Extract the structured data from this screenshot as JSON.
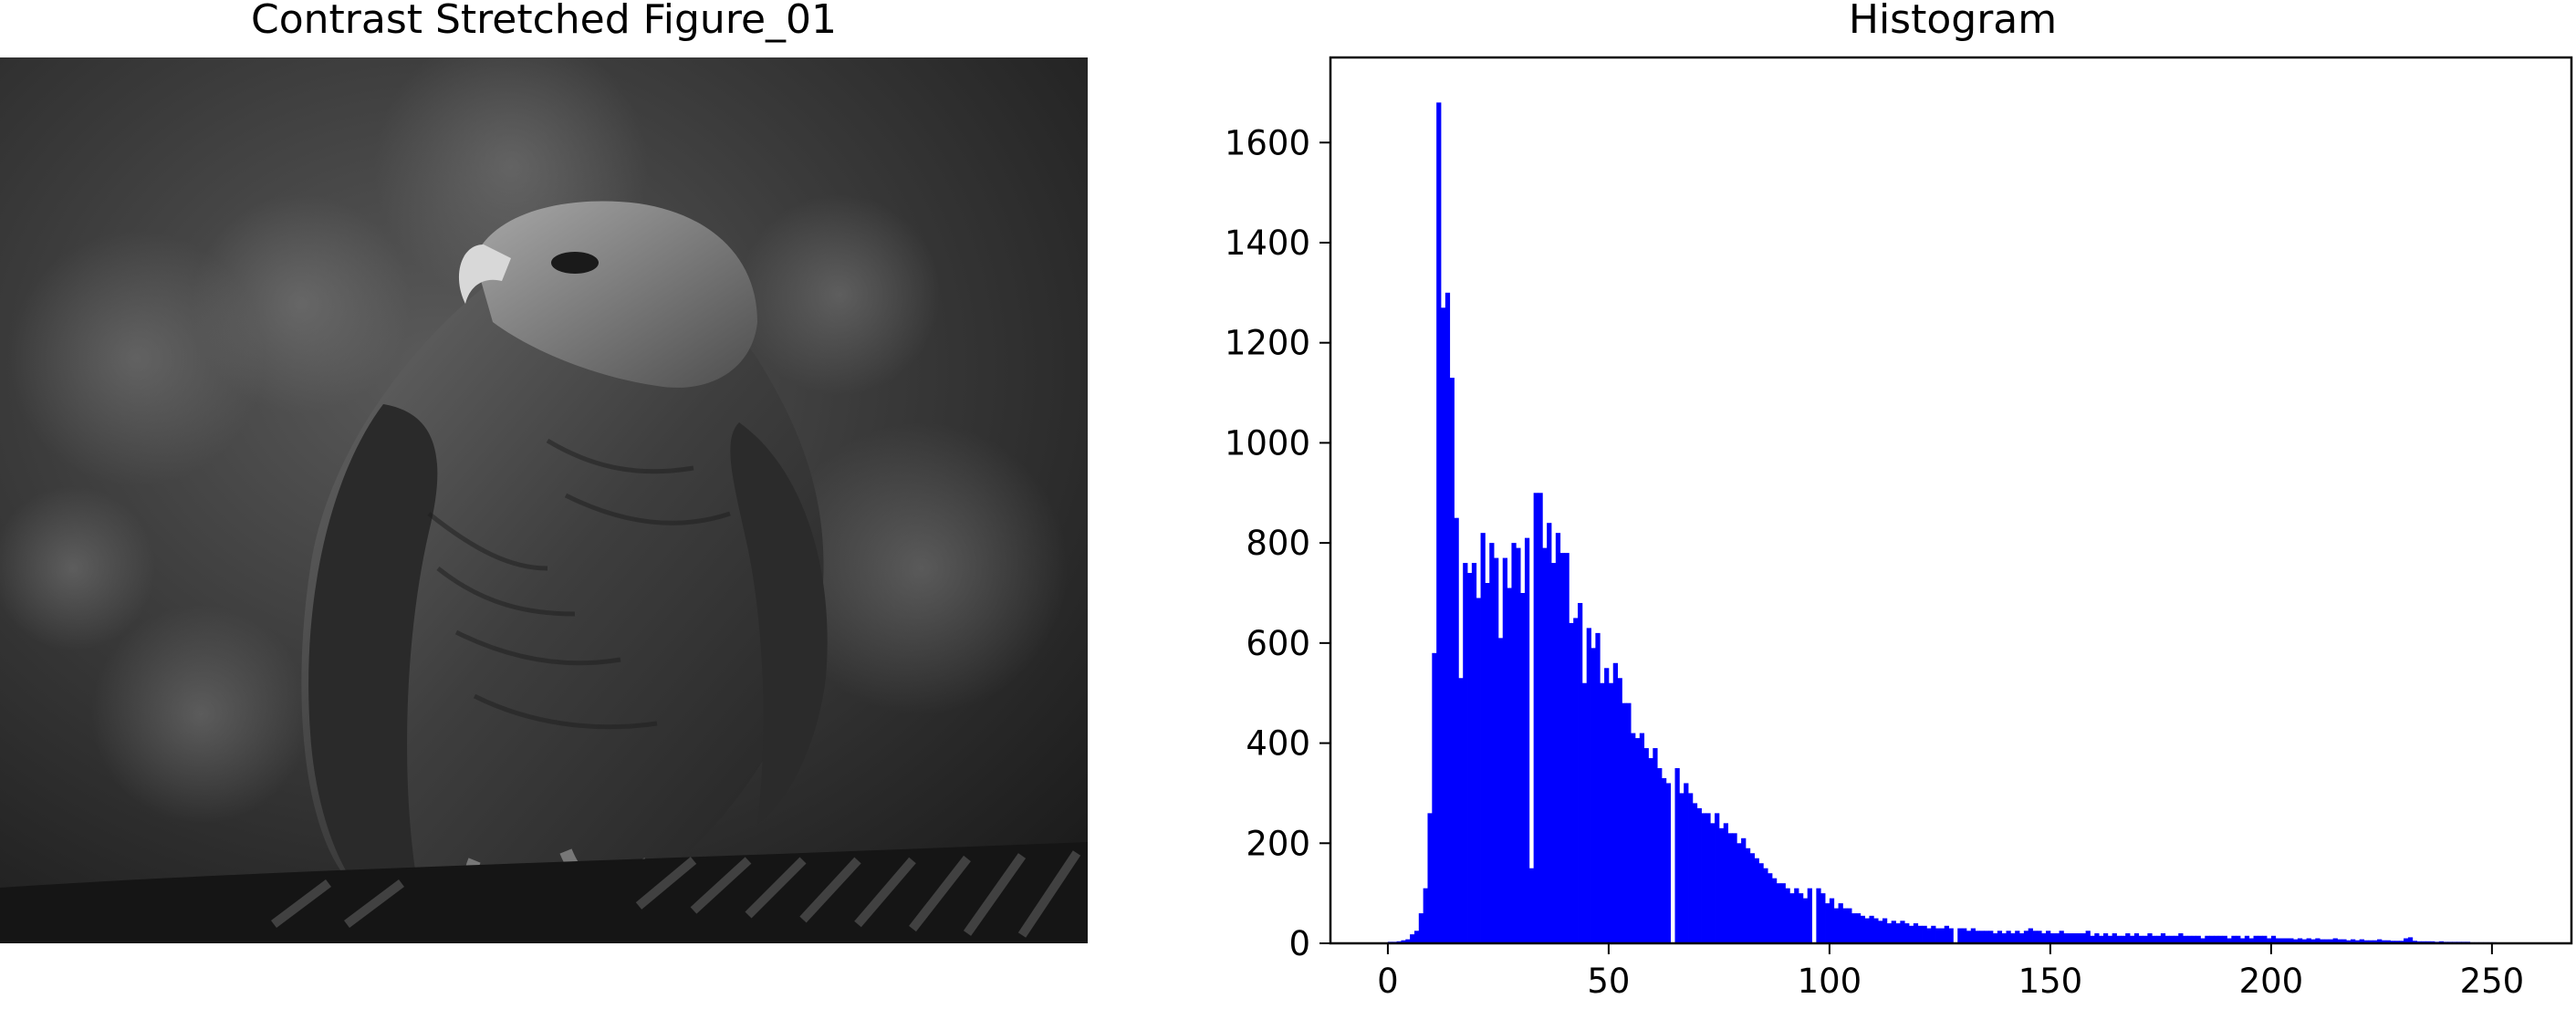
{
  "figure": {
    "left_title": "Contrast Stretched Figure_01",
    "right_title": "Histogram"
  },
  "image_panel": {
    "subject": "grayscale photograph of an eagle perched on a branch",
    "icon": "eagle-photo"
  },
  "colors": {
    "bars": "#0000ff",
    "axes": "#000000",
    "background": "#ffffff"
  },
  "chart_data": {
    "type": "bar",
    "title": "Histogram",
    "xlabel": "",
    "ylabel": "",
    "xlim": [
      -13,
      268
    ],
    "ylim": [
      0,
      1770
    ],
    "xticks": [
      0,
      50,
      100,
      150,
      200,
      250
    ],
    "yticks": [
      0,
      200,
      400,
      600,
      800,
      1000,
      1200,
      1400,
      1600
    ],
    "grid": false,
    "legend": "none",
    "bins": [
      [
        0,
        3
      ],
      [
        1,
        3
      ],
      [
        2,
        4
      ],
      [
        3,
        6
      ],
      [
        4,
        8
      ],
      [
        5,
        18
      ],
      [
        6,
        25
      ],
      [
        7,
        60
      ],
      [
        8,
        110
      ],
      [
        9,
        260
      ],
      [
        10,
        580
      ],
      [
        11,
        1680
      ],
      [
        12,
        1270
      ],
      [
        13,
        1300
      ],
      [
        14,
        1130
      ],
      [
        15,
        850
      ],
      [
        16,
        530
      ],
      [
        17,
        760
      ],
      [
        18,
        740
      ],
      [
        19,
        760
      ],
      [
        20,
        690
      ],
      [
        21,
        820
      ],
      [
        22,
        720
      ],
      [
        23,
        800
      ],
      [
        24,
        770
      ],
      [
        25,
        610
      ],
      [
        26,
        770
      ],
      [
        27,
        710
      ],
      [
        28,
        800
      ],
      [
        29,
        790
      ],
      [
        30,
        700
      ],
      [
        31,
        810
      ],
      [
        32,
        150
      ],
      [
        33,
        900
      ],
      [
        34,
        900
      ],
      [
        35,
        790
      ],
      [
        36,
        840
      ],
      [
        37,
        760
      ],
      [
        38,
        820
      ],
      [
        39,
        780
      ],
      [
        40,
        780
      ],
      [
        41,
        640
      ],
      [
        42,
        650
      ],
      [
        43,
        680
      ],
      [
        44,
        520
      ],
      [
        45,
        630
      ],
      [
        46,
        590
      ],
      [
        47,
        620
      ],
      [
        48,
        520
      ],
      [
        49,
        550
      ],
      [
        50,
        520
      ],
      [
        51,
        560
      ],
      [
        52,
        530
      ],
      [
        53,
        480
      ],
      [
        54,
        480
      ],
      [
        55,
        420
      ],
      [
        56,
        410
      ],
      [
        57,
        420
      ],
      [
        58,
        390
      ],
      [
        59,
        370
      ],
      [
        60,
        390
      ],
      [
        61,
        350
      ],
      [
        62,
        330
      ],
      [
        63,
        320
      ],
      [
        64,
        0
      ],
      [
        65,
        350
      ],
      [
        66,
        300
      ],
      [
        67,
        320
      ],
      [
        68,
        300
      ],
      [
        69,
        280
      ],
      [
        70,
        270
      ],
      [
        71,
        260
      ],
      [
        72,
        260
      ],
      [
        73,
        240
      ],
      [
        74,
        260
      ],
      [
        75,
        230
      ],
      [
        76,
        240
      ],
      [
        77,
        220
      ],
      [
        78,
        220
      ],
      [
        79,
        200
      ],
      [
        80,
        210
      ],
      [
        81,
        190
      ],
      [
        82,
        180
      ],
      [
        83,
        170
      ],
      [
        84,
        160
      ],
      [
        85,
        150
      ],
      [
        86,
        140
      ],
      [
        87,
        130
      ],
      [
        88,
        120
      ],
      [
        89,
        120
      ],
      [
        90,
        110
      ],
      [
        91,
        100
      ],
      [
        92,
        110
      ],
      [
        93,
        100
      ],
      [
        94,
        90
      ],
      [
        95,
        110
      ],
      [
        96,
        0
      ],
      [
        97,
        110
      ],
      [
        98,
        100
      ],
      [
        99,
        80
      ],
      [
        100,
        90
      ],
      [
        101,
        70
      ],
      [
        102,
        80
      ],
      [
        103,
        70
      ],
      [
        104,
        70
      ],
      [
        105,
        60
      ],
      [
        106,
        60
      ],
      [
        107,
        55
      ],
      [
        108,
        50
      ],
      [
        109,
        55
      ],
      [
        110,
        50
      ],
      [
        111,
        45
      ],
      [
        112,
        50
      ],
      [
        113,
        40
      ],
      [
        114,
        45
      ],
      [
        115,
        40
      ],
      [
        116,
        45
      ],
      [
        117,
        40
      ],
      [
        118,
        35
      ],
      [
        119,
        40
      ],
      [
        120,
        35
      ],
      [
        121,
        35
      ],
      [
        122,
        30
      ],
      [
        123,
        35
      ],
      [
        124,
        30
      ],
      [
        125,
        30
      ],
      [
        126,
        35
      ],
      [
        127,
        30
      ],
      [
        128,
        0
      ],
      [
        129,
        30
      ],
      [
        130,
        30
      ],
      [
        131,
        25
      ],
      [
        132,
        30
      ],
      [
        133,
        25
      ],
      [
        134,
        25
      ],
      [
        135,
        25
      ],
      [
        136,
        25
      ],
      [
        137,
        20
      ],
      [
        138,
        25
      ],
      [
        139,
        20
      ],
      [
        140,
        25
      ],
      [
        141,
        20
      ],
      [
        142,
        25
      ],
      [
        143,
        20
      ],
      [
        144,
        25
      ],
      [
        145,
        30
      ],
      [
        146,
        25
      ],
      [
        147,
        25
      ],
      [
        148,
        20
      ],
      [
        149,
        25
      ],
      [
        150,
        20
      ],
      [
        151,
        20
      ],
      [
        152,
        25
      ],
      [
        153,
        20
      ],
      [
        154,
        20
      ],
      [
        155,
        20
      ],
      [
        156,
        20
      ],
      [
        157,
        20
      ],
      [
        158,
        25
      ],
      [
        159,
        15
      ],
      [
        160,
        20
      ],
      [
        161,
        15
      ],
      [
        162,
        20
      ],
      [
        163,
        15
      ],
      [
        164,
        20
      ],
      [
        165,
        15
      ],
      [
        166,
        15
      ],
      [
        167,
        20
      ],
      [
        168,
        15
      ],
      [
        169,
        20
      ],
      [
        170,
        15
      ],
      [
        171,
        15
      ],
      [
        172,
        20
      ],
      [
        173,
        15
      ],
      [
        174,
        15
      ],
      [
        175,
        20
      ],
      [
        176,
        15
      ],
      [
        177,
        15
      ],
      [
        178,
        15
      ],
      [
        179,
        20
      ],
      [
        180,
        15
      ],
      [
        181,
        15
      ],
      [
        182,
        15
      ],
      [
        183,
        15
      ],
      [
        184,
        10
      ],
      [
        185,
        15
      ],
      [
        186,
        15
      ],
      [
        187,
        15
      ],
      [
        188,
        15
      ],
      [
        189,
        15
      ],
      [
        190,
        10
      ],
      [
        191,
        15
      ],
      [
        192,
        15
      ],
      [
        193,
        10
      ],
      [
        194,
        15
      ],
      [
        195,
        10
      ],
      [
        196,
        15
      ],
      [
        197,
        15
      ],
      [
        198,
        15
      ],
      [
        199,
        10
      ],
      [
        200,
        15
      ],
      [
        201,
        10
      ],
      [
        202,
        10
      ],
      [
        203,
        10
      ],
      [
        204,
        10
      ],
      [
        205,
        8
      ],
      [
        206,
        10
      ],
      [
        207,
        8
      ],
      [
        208,
        10
      ],
      [
        209,
        8
      ],
      [
        210,
        10
      ],
      [
        211,
        8
      ],
      [
        212,
        8
      ],
      [
        213,
        8
      ],
      [
        214,
        10
      ],
      [
        215,
        8
      ],
      [
        216,
        8
      ],
      [
        217,
        6
      ],
      [
        218,
        8
      ],
      [
        219,
        6
      ],
      [
        220,
        8
      ],
      [
        221,
        6
      ],
      [
        222,
        6
      ],
      [
        223,
        6
      ],
      [
        224,
        8
      ],
      [
        225,
        6
      ],
      [
        226,
        6
      ],
      [
        227,
        5
      ],
      [
        228,
        5
      ],
      [
        229,
        5
      ],
      [
        230,
        10
      ],
      [
        231,
        12
      ],
      [
        232,
        5
      ],
      [
        233,
        4
      ],
      [
        234,
        4
      ],
      [
        235,
        4
      ],
      [
        236,
        4
      ],
      [
        237,
        3
      ],
      [
        238,
        4
      ],
      [
        239,
        3
      ],
      [
        240,
        3
      ],
      [
        241,
        3
      ],
      [
        242,
        3
      ],
      [
        243,
        3
      ],
      [
        244,
        3
      ],
      [
        245,
        2
      ],
      [
        246,
        2
      ],
      [
        247,
        2
      ],
      [
        248,
        2
      ],
      [
        249,
        2
      ],
      [
        250,
        2
      ],
      [
        251,
        1
      ],
      [
        252,
        1
      ],
      [
        253,
        1
      ],
      [
        254,
        1
      ],
      [
        255,
        1
      ]
    ]
  }
}
